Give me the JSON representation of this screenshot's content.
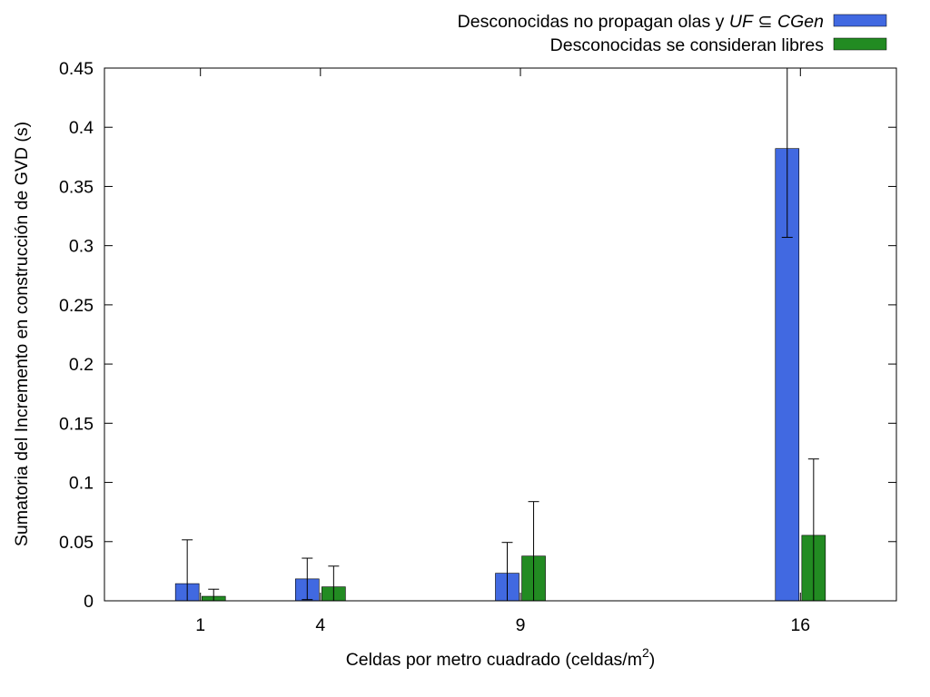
{
  "chart_data": {
    "type": "bar",
    "xlabel_prefix": "Celdas por metro cuadrado (celdas/m",
    "xlabel_sup": "2",
    "xlabel_suffix": ")",
    "ylabel": "Sumatoria del Incremento en construcción de GVD (s)",
    "ylim": [
      0,
      0.45
    ],
    "yticks": [
      "0",
      "0.05",
      "0.1",
      "0.15",
      "0.2",
      "0.25",
      "0.3",
      "0.35",
      "0.4",
      "0.45"
    ],
    "ytick_values": [
      0,
      0.05,
      0.1,
      0.15,
      0.2,
      0.25,
      0.3,
      0.35,
      0.4,
      0.45
    ],
    "x_values": [
      1,
      4,
      9,
      16
    ],
    "categories": [
      "1",
      "4",
      "9",
      "16"
    ],
    "xlim": [
      -1.4,
      18.4
    ],
    "legend_position": "top-right, outside plot",
    "series": [
      {
        "name_parts": [
          "Desconocidas no propagan olas y ",
          "UF",
          " ⊆ ",
          "CGen"
        ],
        "color": "#4169e1",
        "values": [
          0.0145,
          0.0185,
          0.0233,
          0.382
        ],
        "error": [
          0.037,
          0.0175,
          0.026,
          0.075
        ]
      },
      {
        "name": "Desconocidas se consideran libres",
        "color": "#228b22",
        "values": [
          0.0038,
          0.0118,
          0.0378,
          0.0553
        ],
        "error": [
          0.006,
          0.0175,
          0.046,
          0.0645
        ]
      }
    ],
    "grid": false
  }
}
